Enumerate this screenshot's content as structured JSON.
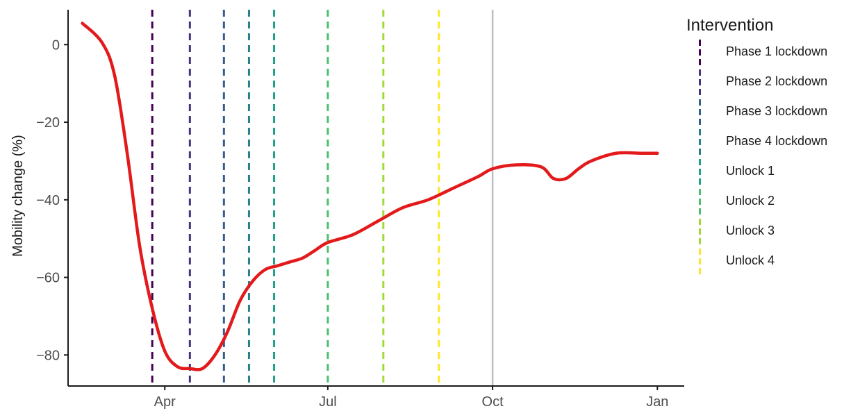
{
  "chart_data": {
    "type": "line",
    "xlabel": "",
    "ylabel": "Mobility change (%)",
    "ylim": [
      -88,
      9
    ],
    "y_ticks": [
      0,
      -20,
      -40,
      -60,
      -80
    ],
    "x_ticks": [
      {
        "label": "Apr",
        "date": "2020-04-01"
      },
      {
        "label": "Jul",
        "date": "2020-07-01"
      },
      {
        "label": "Oct",
        "date": "2020-10-01"
      },
      {
        "label": "Jan",
        "date": "2021-01-01"
      }
    ],
    "xlim": [
      "2020-02-07",
      "2021-01-16"
    ],
    "grid": false,
    "legend_title": "Intervention",
    "legend_position": "right",
    "line_color": "#e31a1c",
    "series": [
      {
        "x": [
          "2020-02-15",
          "2020-02-26",
          "2020-03-04",
          "2020-03-11",
          "2020-03-18",
          "2020-03-25",
          "2020-04-01",
          "2020-04-08",
          "2020-04-15",
          "2020-04-22",
          "2020-04-29",
          "2020-05-06",
          "2020-05-13",
          "2020-05-20",
          "2020-05-27",
          "2020-06-03",
          "2020-06-10",
          "2020-06-17",
          "2020-06-24",
          "2020-07-01",
          "2020-07-15",
          "2020-07-29",
          "2020-08-12",
          "2020-08-26",
          "2020-09-09",
          "2020-09-23",
          "2020-10-01",
          "2020-10-14",
          "2020-10-28",
          "2020-11-04",
          "2020-11-11",
          "2020-11-18",
          "2020-11-25",
          "2020-12-09",
          "2020-12-23",
          "2021-01-01"
        ],
        "y": [
          5.5,
          0.5,
          -8,
          -28,
          -52,
          -68,
          -79,
          -83,
          -83.5,
          -83.5,
          -80,
          -74,
          -66,
          -61,
          -58,
          -57,
          -56,
          -55,
          -53,
          -51,
          -49,
          -45.5,
          -42,
          -40,
          -37,
          -34,
          -32,
          -31,
          -31.5,
          -34.5,
          -34.5,
          -32,
          -30,
          -28,
          -28,
          -28
        ]
      }
    ],
    "interventions": [
      {
        "name": "Phase 1 lockdown",
        "date": "2020-03-25",
        "color": "#440154"
      },
      {
        "name": "Phase 2 lockdown",
        "date": "2020-04-15",
        "color": "#46327e"
      },
      {
        "name": "Phase 3 lockdown",
        "date": "2020-05-04",
        "color": "#365c8d"
      },
      {
        "name": "Phase 4 lockdown",
        "date": "2020-05-18",
        "color": "#277f8e"
      },
      {
        "name": "Unlock 1",
        "date": "2020-06-01",
        "color": "#1fa187"
      },
      {
        "name": "Unlock 2",
        "date": "2020-07-01",
        "color": "#4ac16d"
      },
      {
        "name": "Unlock 3",
        "date": "2020-08-01",
        "color": "#a0da39"
      },
      {
        "name": "Unlock 4",
        "date": "2020-09-01",
        "color": "#fde725"
      }
    ],
    "reference_line": {
      "date": "2020-10-01",
      "color": "#bebebe"
    }
  }
}
